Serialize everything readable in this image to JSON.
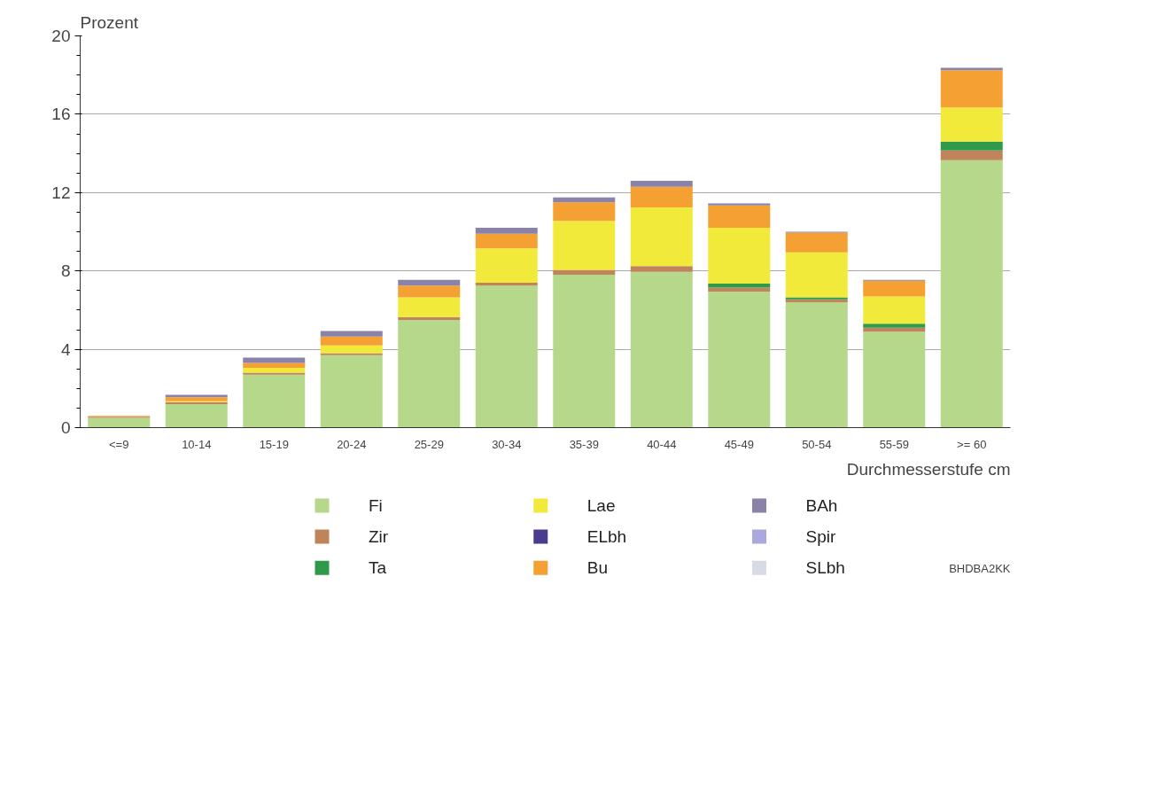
{
  "chart_data": {
    "type": "bar",
    "stacked": true,
    "xlabel": "Durchmesserstufe cm",
    "ylabel": "Prozent",
    "categories": [
      "<=9",
      "10-14",
      "15-19",
      "20-24",
      "25-29",
      "30-34",
      "35-39",
      "40-44",
      "45-49",
      "50-54",
      "55-59",
      ">= 60"
    ],
    "series": [
      {
        "name": "Fi",
        "color": "#b5d88a",
        "values": [
          0.5,
          1.2,
          2.7,
          3.7,
          5.5,
          7.25,
          7.8,
          7.95,
          6.95,
          6.4,
          4.9,
          13.65
        ]
      },
      {
        "name": "Zir",
        "color": "#c0845a",
        "values": [
          0.05,
          0.1,
          0.1,
          0.1,
          0.15,
          0.15,
          0.25,
          0.3,
          0.2,
          0.15,
          0.2,
          0.5
        ]
      },
      {
        "name": "Ta",
        "color": "#2e9a4a",
        "values": [
          0,
          0,
          0,
          0,
          0,
          0,
          0,
          0,
          0.2,
          0.1,
          0.2,
          0.45
        ]
      },
      {
        "name": "Lae",
        "color": "#f2ea3a",
        "values": [
          0,
          0.05,
          0.25,
          0.4,
          1.0,
          1.75,
          2.5,
          3.0,
          2.85,
          2.3,
          1.4,
          1.75
        ]
      },
      {
        "name": "ELbh",
        "color": "#4b3a8e",
        "values": [
          0,
          0,
          0,
          0,
          0,
          0,
          0,
          0,
          0,
          0,
          0,
          0
        ]
      },
      {
        "name": "Bu",
        "color": "#f5a033",
        "values": [
          0.05,
          0.2,
          0.25,
          0.45,
          0.6,
          0.75,
          0.95,
          1.05,
          1.15,
          1.0,
          0.8,
          1.9
        ]
      },
      {
        "name": "BAh",
        "color": "#8a82a8",
        "values": [
          0,
          0.12,
          0.27,
          0.28,
          0.3,
          0.3,
          0.25,
          0.3,
          0.1,
          0.05,
          0.05,
          0.12
        ]
      },
      {
        "name": "Spir",
        "color": "#aaa8dc",
        "values": [
          0,
          0,
          0,
          0,
          0,
          0,
          0,
          0,
          0,
          0,
          0,
          0
        ]
      },
      {
        "name": "SLbh",
        "color": "#d8dae4",
        "values": [
          0,
          0,
          0,
          0,
          0,
          0,
          0,
          0,
          0,
          0,
          0,
          0
        ]
      }
    ],
    "ylim": [
      0,
      20
    ],
    "yticks": [
      0,
      4,
      8,
      12,
      16,
      20
    ],
    "grid": "y",
    "legend": "bottom",
    "annotations": [
      "BHDBA2KK"
    ]
  }
}
